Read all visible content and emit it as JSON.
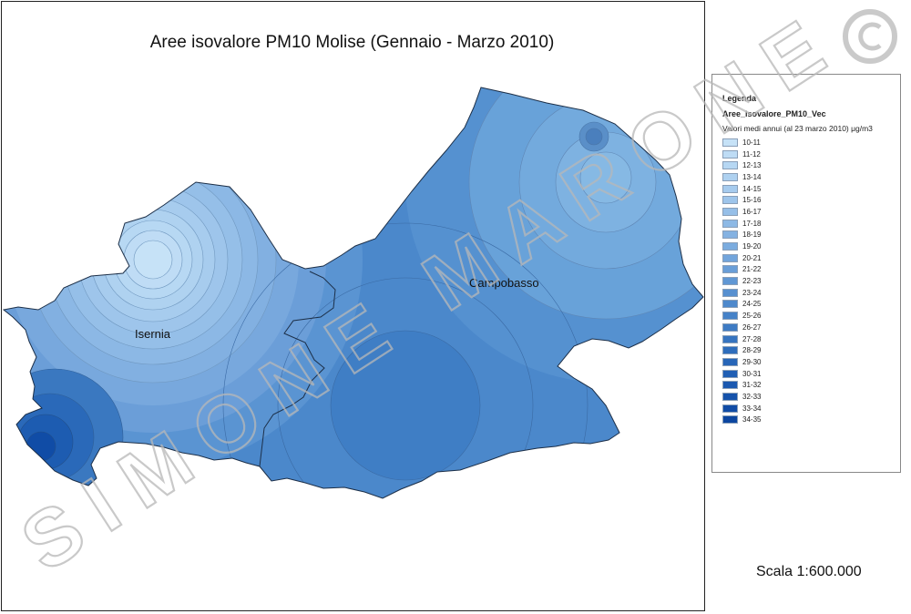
{
  "map": {
    "title": "Aree isovalore PM10 Molise (Gennaio - Marzo 2010)",
    "cities": [
      {
        "name": "Isernia"
      },
      {
        "name": "Campobasso"
      }
    ]
  },
  "legend": {
    "title": "Legenda",
    "layer": "Aree_isovalore_PM10_Vec",
    "field": "Valori medi annui (al 23 marzo 2010) μg/m3",
    "classes": [
      {
        "label": "10-11",
        "color": "#c6e2f7"
      },
      {
        "label": "11-12",
        "color": "#bedcf5"
      },
      {
        "label": "12-13",
        "color": "#b6d7f3"
      },
      {
        "label": "13-14",
        "color": "#aed1f0"
      },
      {
        "label": "14-15",
        "color": "#a6cbee"
      },
      {
        "label": "15-16",
        "color": "#9ec5eb"
      },
      {
        "label": "16-17",
        "color": "#96bfe8"
      },
      {
        "label": "17-18",
        "color": "#8db9e5"
      },
      {
        "label": "18-19",
        "color": "#84b2e2"
      },
      {
        "label": "19-20",
        "color": "#7bacdf"
      },
      {
        "label": "20-21",
        "color": "#72a5dc"
      },
      {
        "label": "21-22",
        "color": "#699ed8"
      },
      {
        "label": "22-23",
        "color": "#6097d4"
      },
      {
        "label": "23-24",
        "color": "#5790d0"
      },
      {
        "label": "24-25",
        "color": "#4e89cc"
      },
      {
        "label": "25-26",
        "color": "#4682c8"
      },
      {
        "label": "26-27",
        "color": "#3e7bc4"
      },
      {
        "label": "27-28",
        "color": "#3674c0"
      },
      {
        "label": "28-29",
        "color": "#2e6dbc"
      },
      {
        "label": "29-30",
        "color": "#2766b8"
      },
      {
        "label": "30-31",
        "color": "#205fb4"
      },
      {
        "label": "31-32",
        "color": "#1a58b0"
      },
      {
        "label": "32-33",
        "color": "#1552ab"
      },
      {
        "label": "33-34",
        "color": "#104ca6"
      },
      {
        "label": "34-35",
        "color": "#0c46a0"
      }
    ]
  },
  "scale": "Scala 1:600.000",
  "watermark": {
    "text": "SIMONE MARONE",
    "symbol": "©"
  }
}
